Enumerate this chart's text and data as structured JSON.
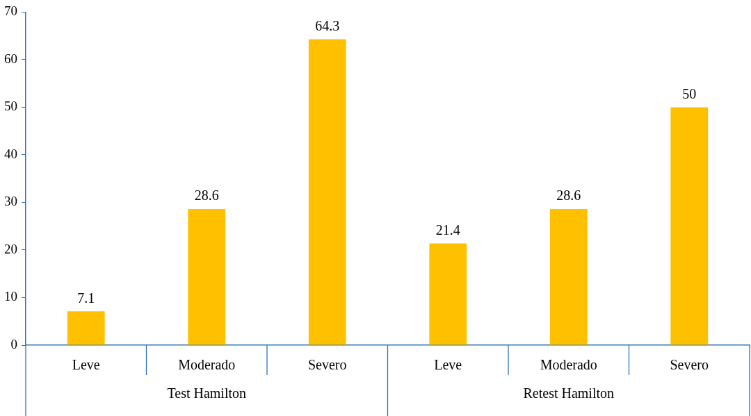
{
  "chart_data": {
    "type": "bar",
    "categories": [
      "Leve",
      "Moderado",
      "Severo",
      "Leve",
      "Moderado",
      "Severo"
    ],
    "values": [
      7.1,
      28.6,
      64.3,
      21.4,
      28.6,
      50
    ],
    "color": "#ffc000",
    "ylim": [
      0,
      70
    ],
    "yticks": [
      0,
      10,
      20,
      30,
      40,
      50,
      60,
      70
    ],
    "data_labels": true,
    "annotations": [
      "Test Hamilton",
      "Retest Hamilton"
    ]
  }
}
